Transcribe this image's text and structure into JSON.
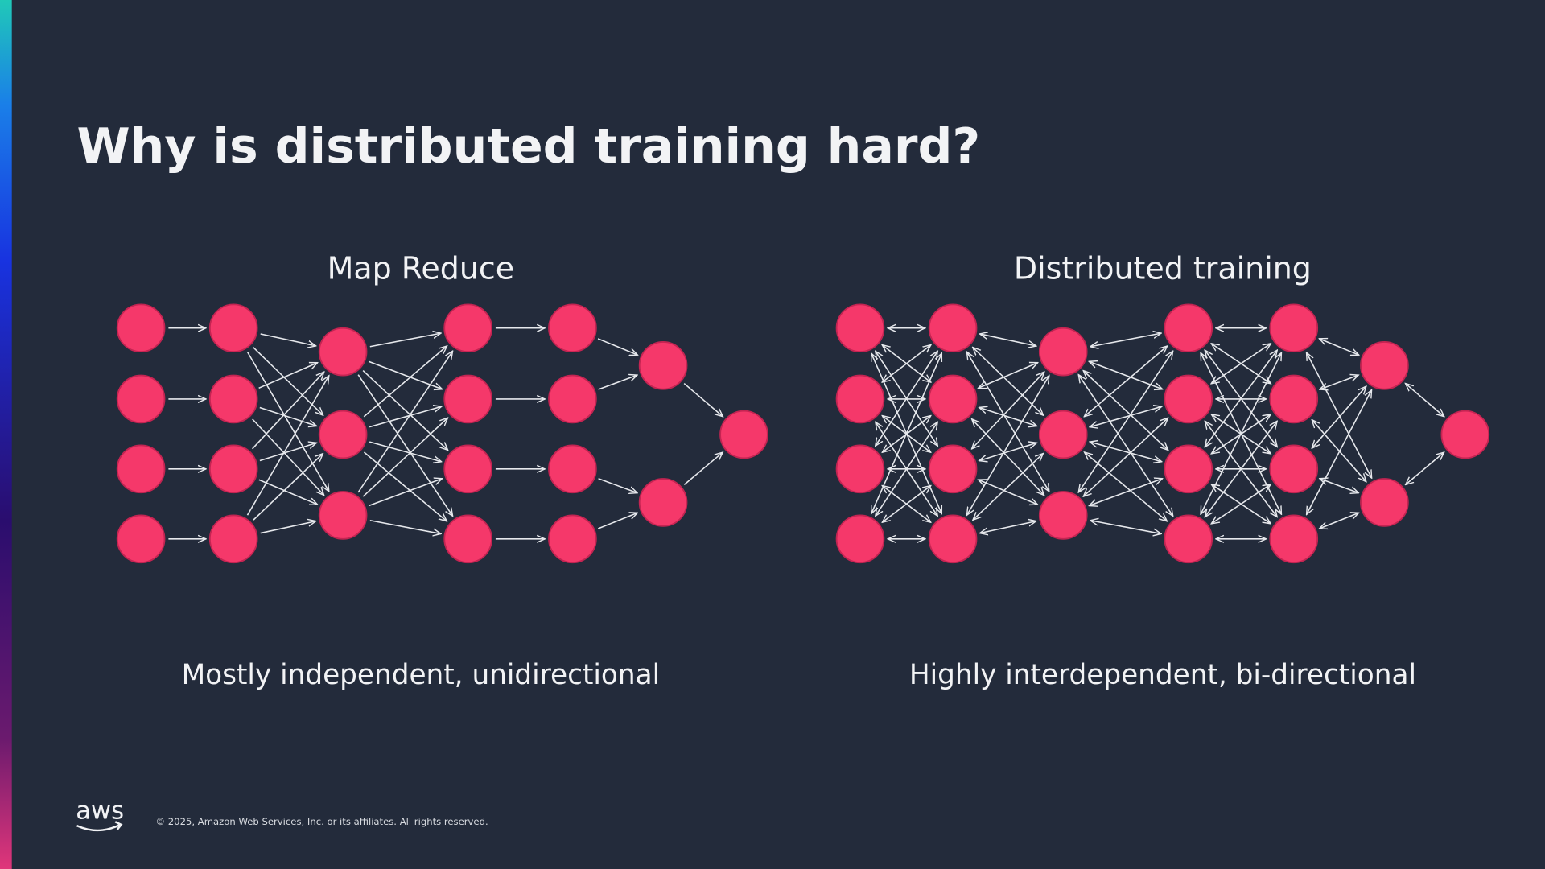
{
  "title": "Why is distributed training hard?",
  "diagrams": [
    {
      "heading": "Map Reduce",
      "caption": "Mostly independent, unidirectional"
    },
    {
      "heading": "Distributed training",
      "caption": "Highly interdependent, bi-directional"
    }
  ],
  "footer": {
    "logo": "aws",
    "copyright": "© 2025, Amazon Web Services, Inc. or its affiliates. All rights reserved."
  }
}
